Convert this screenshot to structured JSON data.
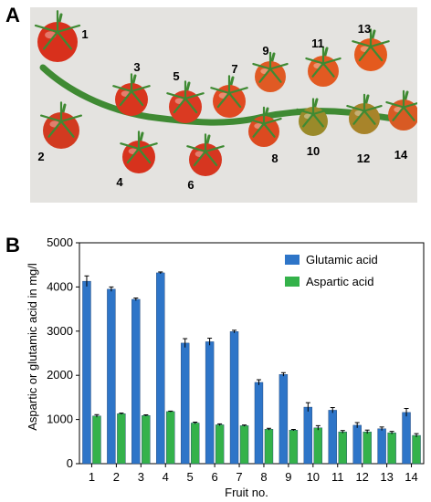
{
  "panel_a": {
    "letter": "A",
    "fruit_labels": [
      "1",
      "2",
      "3",
      "4",
      "5",
      "6",
      "7",
      "8",
      "9",
      "10",
      "11",
      "12",
      "13",
      "14"
    ]
  },
  "panel_b": {
    "letter": "B"
  },
  "colors": {
    "glutamic": "#2e75c8",
    "aspartic": "#34b24a",
    "backdrop": "#e4e3e0",
    "tomato_red": "#d8301c",
    "stem_green": "#3f8a33"
  },
  "chart_data": {
    "type": "bar",
    "title": "",
    "xlabel": "Fruit no.",
    "ylabel": "Aspartic or glutamic acid in mg/l",
    "ylim": [
      0,
      5000
    ],
    "yticks": [
      0,
      1000,
      2000,
      3000,
      4000,
      5000
    ],
    "categories": [
      "1",
      "2",
      "3",
      "4",
      "5",
      "6",
      "7",
      "8",
      "9",
      "10",
      "11",
      "12",
      "13",
      "14"
    ],
    "legend_position": "top-right",
    "grid": false,
    "series": [
      {
        "name": "Glutamic acid",
        "values": [
          4130,
          3950,
          3720,
          4320,
          2730,
          2760,
          2990,
          1840,
          2020,
          1280,
          1210,
          870,
          790,
          1160
        ],
        "errors": [
          120,
          50,
          30,
          20,
          100,
          80,
          30,
          60,
          40,
          100,
          60,
          60,
          40,
          90
        ]
      },
      {
        "name": "Aspartic acid",
        "values": [
          1080,
          1130,
          1090,
          1180,
          920,
          880,
          860,
          780,
          760,
          810,
          720,
          720,
          700,
          640
        ],
        "errors": [
          30,
          15,
          15,
          10,
          20,
          20,
          15,
          20,
          15,
          50,
          30,
          40,
          30,
          40
        ]
      }
    ]
  }
}
